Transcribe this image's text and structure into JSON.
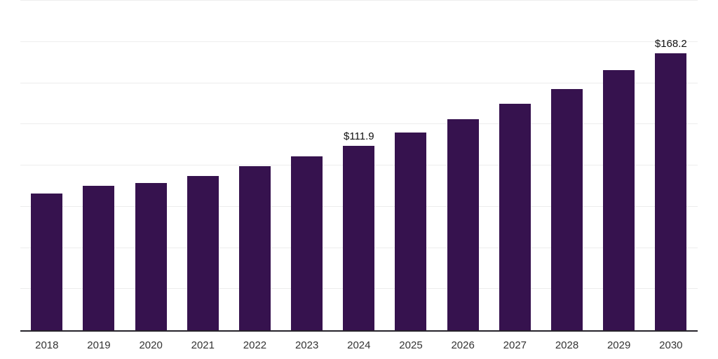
{
  "chart_data": {
    "type": "bar",
    "title": "",
    "xlabel": "",
    "ylabel": "",
    "categories": [
      "2018",
      "2019",
      "2020",
      "2021",
      "2022",
      "2023",
      "2024",
      "2025",
      "2026",
      "2027",
      "2028",
      "2029",
      "2030"
    ],
    "values": [
      83.0,
      87.6,
      89.4,
      93.7,
      99.5,
      105.7,
      111.9,
      120.0,
      127.9,
      137.4,
      146.6,
      158.0,
      168.2
    ],
    "point_labels": [
      "",
      "",
      "",
      "",
      "",
      "",
      "$111.9",
      "",
      "",
      "",
      "",
      "",
      "$168.2"
    ],
    "ylim": [
      0,
      200
    ],
    "gridline_interval": 25,
    "grid": true,
    "legend": false,
    "y_axis_tick_labels_visible": false
  },
  "colors": {
    "bar": "#36124e",
    "grid": "#ededed",
    "axis": "#26232b",
    "tick_label": "#333333",
    "value_label": "#111111",
    "background": "#ffffff"
  }
}
